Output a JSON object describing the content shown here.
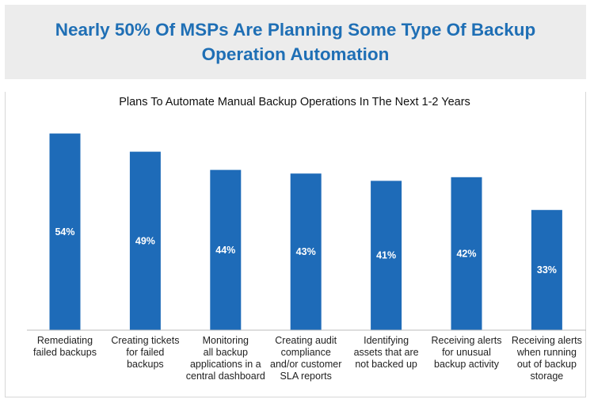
{
  "header": {
    "title": "Nearly 50% Of MSPs Are Planning Some Type Of Backup Operation Automation"
  },
  "colors": {
    "bar": "#1e6bb8",
    "header_bg": "#ececec",
    "header_text": "#1f6fb5"
  },
  "chart_data": {
    "type": "bar",
    "title": "Plans To Automate Manual Backup Operations In The Next 1-2 Years",
    "xlabel": "",
    "ylabel": "",
    "ylim": [
      0,
      60
    ],
    "grid": false,
    "legend": "none",
    "categories": [
      [
        "Remediating",
        "failed backups"
      ],
      [
        "Creating tickets",
        "for failed",
        "backups"
      ],
      [
        "Monitoring",
        "all backup",
        "applications in a",
        "central dashboard"
      ],
      [
        "Creating audit",
        "compliance",
        "and/or customer",
        "SLA reports"
      ],
      [
        "Identifying",
        "assets that are",
        "not backed up"
      ],
      [
        "Receiving alerts",
        "for unusual",
        "backup activity"
      ],
      [
        "Receiving alerts",
        "when running",
        "out of backup",
        "storage"
      ]
    ],
    "values": [
      54,
      49,
      44,
      43,
      41,
      42,
      33
    ],
    "value_labels": [
      "54%",
      "49%",
      "44%",
      "43%",
      "41%",
      "42%",
      "33%"
    ]
  }
}
